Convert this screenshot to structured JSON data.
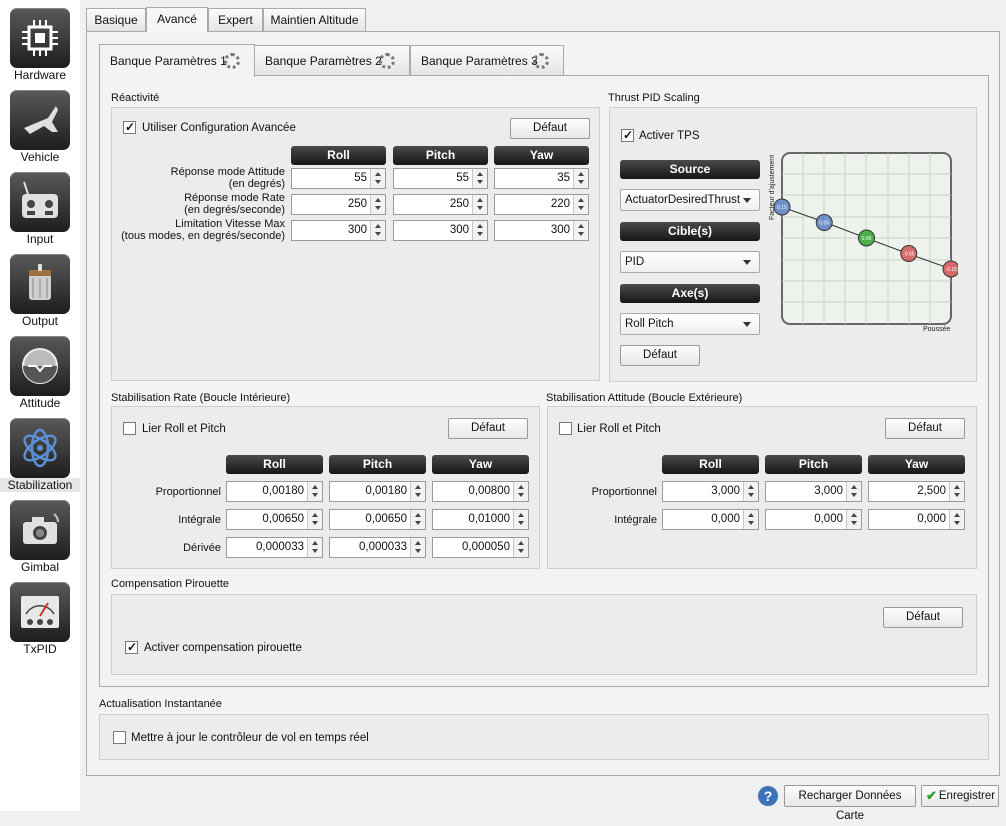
{
  "sidebar": {
    "items": [
      {
        "label": "Hardware",
        "icon": "chip-icon"
      },
      {
        "label": "Vehicle",
        "icon": "aircraft-icon"
      },
      {
        "label": "Input",
        "icon": "transmitter-icon"
      },
      {
        "label": "Output",
        "icon": "motor-icon"
      },
      {
        "label": "Attitude",
        "icon": "horizon-icon"
      },
      {
        "label": "Stabilization",
        "icon": "gyro-icon"
      },
      {
        "label": "Gimbal",
        "icon": "camera-icon"
      },
      {
        "label": "TxPID",
        "icon": "gauge-icon"
      }
    ],
    "active": "Stabilization"
  },
  "main_tabs": [
    "Basique",
    "Avancé",
    "Expert",
    "Maintien Altitude"
  ],
  "bank_tabs": [
    "Banque Paramètres 1",
    "Banque Paramètres 2",
    "Banque Paramètres 3"
  ],
  "reactivite": {
    "title": "Réactivité",
    "use_advanced": "Utiliser Configuration Avancée",
    "default": "Défaut",
    "headers": [
      "Roll",
      "Pitch",
      "Yaw"
    ],
    "rows": [
      {
        "label1": "Réponse mode Attitude",
        "label2": "(en degrés)",
        "values": [
          "55",
          "55",
          "35"
        ]
      },
      {
        "label1": "Réponse mode Rate",
        "label2": "(en degrés/seconde)",
        "values": [
          "250",
          "250",
          "220"
        ]
      },
      {
        "label1": "Limitation Vitesse Max",
        "label2": "(tous modes, en degrés/seconde)",
        "values": [
          "300",
          "300",
          "300"
        ]
      }
    ]
  },
  "tps": {
    "title": "Thrust PID Scaling",
    "enable": "Activer TPS",
    "source_hdr": "Source",
    "source_val": "ActuatorDesiredThrust",
    "target_hdr": "Cible(s)",
    "target_val": "PID",
    "axes_hdr": "Axe(s)",
    "axes_val": "Roll Pitch",
    "default": "Défaut",
    "ylabel": "Facteur d'ajustement",
    "xlabel": "Poussée",
    "points": [
      {
        "label": "0.15",
        "color": "#6f90c8"
      },
      {
        "label": "0.05",
        "color": "#6f90c8"
      },
      {
        "label": "0.00",
        "color": "#4cae4c"
      },
      {
        "label": "-0.05",
        "color": "#d46a6a"
      },
      {
        "label": "-0.15",
        "color": "#d46a6a"
      }
    ]
  },
  "rate": {
    "title": "Stabilisation Rate (Boucle Intérieure)",
    "link": "Lier Roll et Pitch",
    "default": "Défaut",
    "headers": [
      "Roll",
      "Pitch",
      "Yaw"
    ],
    "rows": [
      {
        "label": "Proportionnel",
        "values": [
          "0,00180",
          "0,00180",
          "0,00800"
        ]
      },
      {
        "label": "Intégrale",
        "values": [
          "0,00650",
          "0,00650",
          "0,01000"
        ]
      },
      {
        "label": "Dérivée",
        "values": [
          "0,000033",
          "0,000033",
          "0,000050"
        ]
      }
    ]
  },
  "attitude": {
    "title": "Stabilisation Attitude (Boucle Extérieure)",
    "link": "Lier Roll et Pitch",
    "default": "Défaut",
    "headers": [
      "Roll",
      "Pitch",
      "Yaw"
    ],
    "rows": [
      {
        "label": "Proportionnel",
        "values": [
          "3,000",
          "3,000",
          "2,500"
        ]
      },
      {
        "label": "Intégrale",
        "values": [
          "0,000",
          "0,000",
          "0,000"
        ]
      }
    ]
  },
  "pirouette": {
    "title": "Compensation Pirouette",
    "default": "Défaut",
    "enable": "Activer compensation pirouette"
  },
  "realtime": {
    "title": "Actualisation Instantanée",
    "label": "Mettre à jour le contrôleur de vol en temps réel"
  },
  "footer": {
    "reload": "Recharger Données Carte",
    "save": "Enregistrer"
  }
}
